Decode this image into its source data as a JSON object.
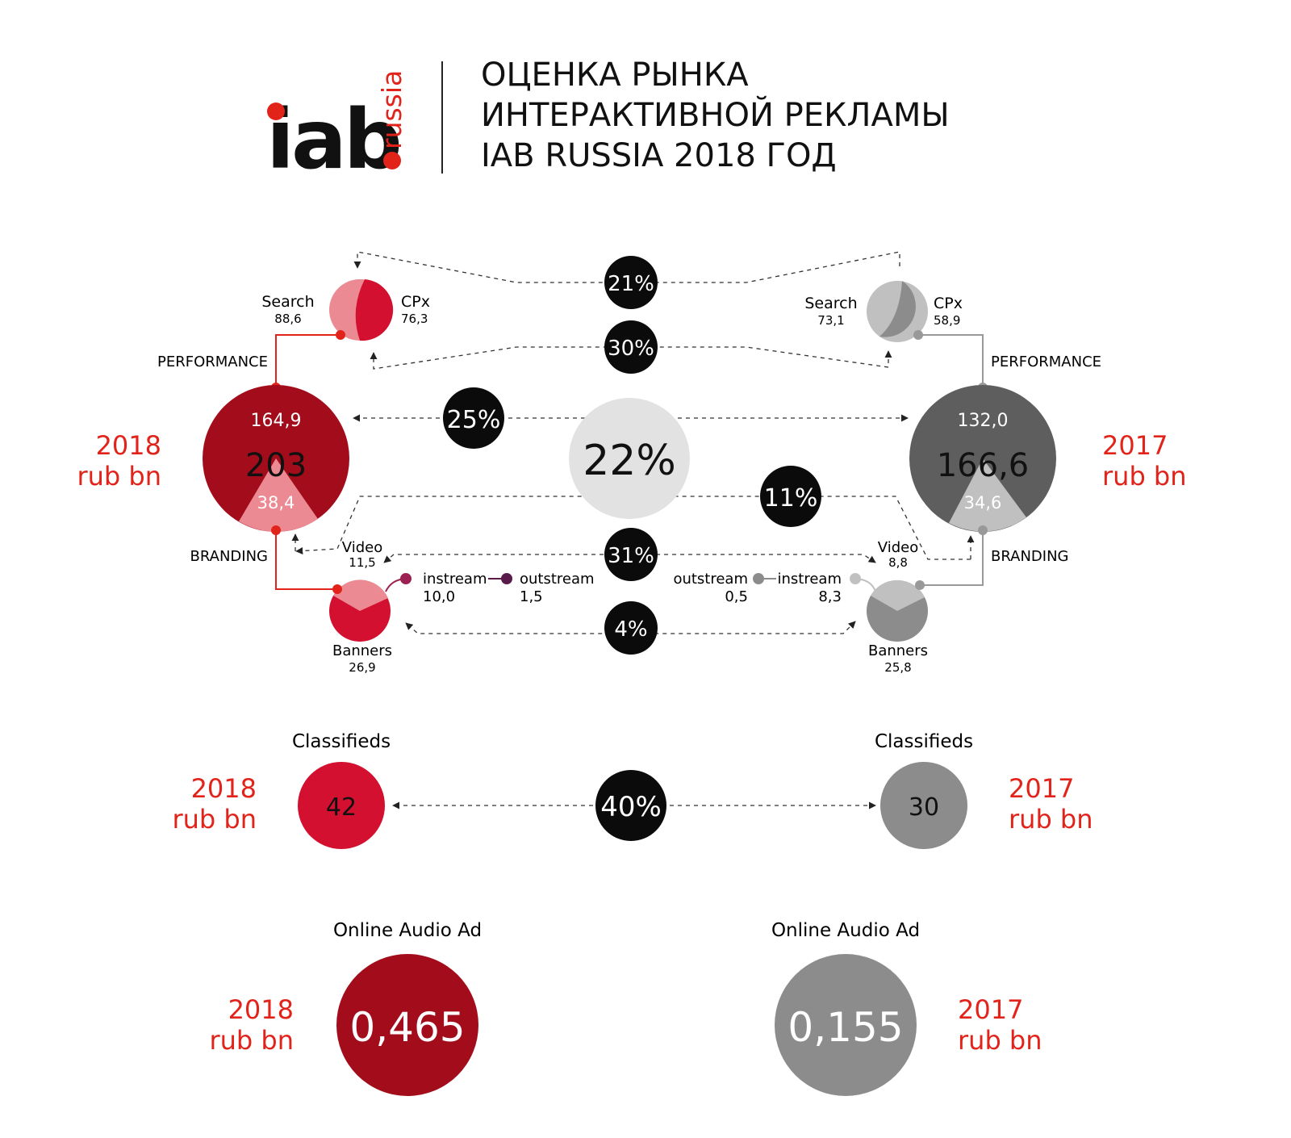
{
  "header": {
    "logo_text": "iab",
    "logo_sub": "russia",
    "title_lines": [
      "ОЦЕНКА РЫНКА",
      "ИНТЕРАКТИВНОЙ РЕКЛАМЫ",
      "IAB RUSSIA 2018 ГОД"
    ]
  },
  "colors": {
    "red_dark": "#a30d1b",
    "red": "#d3102f",
    "red_light": "#ec8a94",
    "red_text": "#e2231a",
    "gray_dark": "#5e5e5e",
    "gray": "#8c8c8c",
    "gray_light": "#c0c0c0",
    "growth_bg": "#0b0b0b",
    "total_growth_bg": "#e2e2e2",
    "purple_instream": "#9c2152",
    "purple_outstream": "#5a1a4a"
  },
  "year_2018": {
    "label_year": "2018",
    "label_unit": "rub bn",
    "total": "203",
    "performance_value": "164,9",
    "branding_value": "38,4",
    "performance_label": "PERFORMANCE",
    "branding_label": "BRANDING",
    "search": {
      "label": "Search",
      "value": "88,6"
    },
    "cpx": {
      "label": "CPx",
      "value": "76,3"
    },
    "video": {
      "label": "Video",
      "value": "11,5"
    },
    "instream": {
      "label": "instream",
      "value": "10,0"
    },
    "outstream": {
      "label": "outstream",
      "value": "1,5"
    },
    "banners": {
      "label": "Banners",
      "value": "26,9"
    },
    "classifieds": {
      "label": "Classifieds",
      "value": "42"
    },
    "audio": {
      "label": "Online Audio Ad",
      "value": "0,465"
    }
  },
  "year_2017": {
    "label_year": "2017",
    "label_unit": "rub bn",
    "total": "166,6",
    "performance_value": "132,0",
    "branding_value": "34,6",
    "performance_label": "PERFORMANCE",
    "branding_label": "BRANDING",
    "search": {
      "label": "Search",
      "value": "73,1"
    },
    "cpx": {
      "label": "CPx",
      "value": "58,9"
    },
    "video": {
      "label": "Video",
      "value": "8,8"
    },
    "instream": {
      "label": "instream",
      "value": "8,3"
    },
    "outstream": {
      "label": "outstream",
      "value": "0,5"
    },
    "banners": {
      "label": "Banners",
      "value": "25,8"
    },
    "classifieds": {
      "label": "Classifieds",
      "value": "30"
    },
    "audio": {
      "label": "Online Audio Ad",
      "value": "0,155"
    }
  },
  "growth": {
    "total": "22%",
    "search": "21%",
    "cpx": "30%",
    "performance": "25%",
    "branding": "11%",
    "video": "31%",
    "banners": "4%",
    "classifieds": "40%"
  }
}
